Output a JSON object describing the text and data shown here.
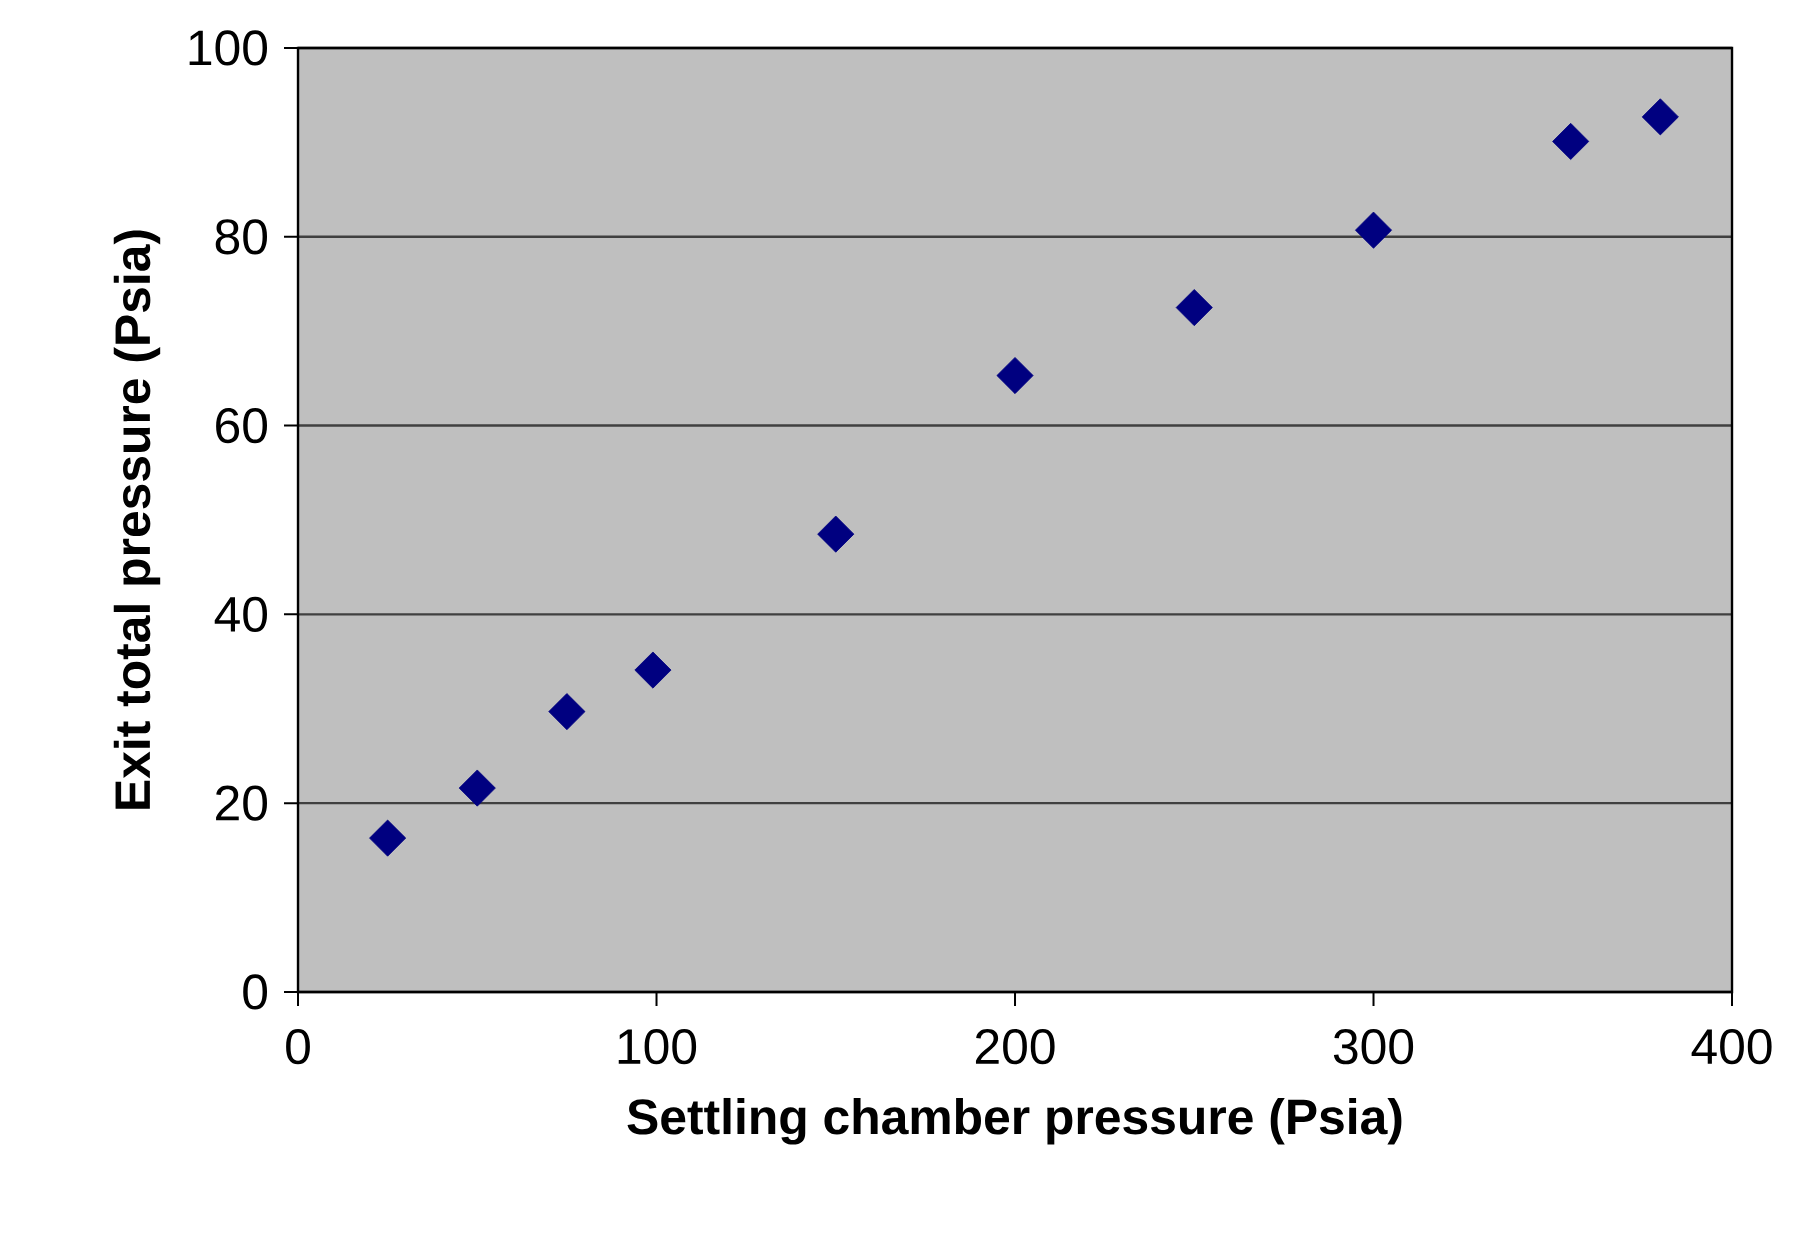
{
  "chart_data": {
    "type": "scatter",
    "xlabel": "Settling chamber pressure (Psia)",
    "ylabel": "Exit total pressure (Psia)",
    "x": [
      25,
      50,
      75,
      99,
      150,
      200,
      250,
      300,
      355,
      380
    ],
    "series": [
      {
        "color": "#000080",
        "values": [
          16.3,
          21.6,
          29.7,
          34.1,
          48.5,
          65.3,
          72.5,
          80.7,
          90.1,
          92.7
        ]
      }
    ],
    "xlim": [
      0,
      400
    ],
    "xticks": [
      0,
      100,
      200,
      300,
      400
    ],
    "ylim": [
      0,
      100
    ],
    "yticks": [
      0,
      20,
      40,
      60,
      80,
      100
    ],
    "grid": "y",
    "marker": "diamond"
  }
}
